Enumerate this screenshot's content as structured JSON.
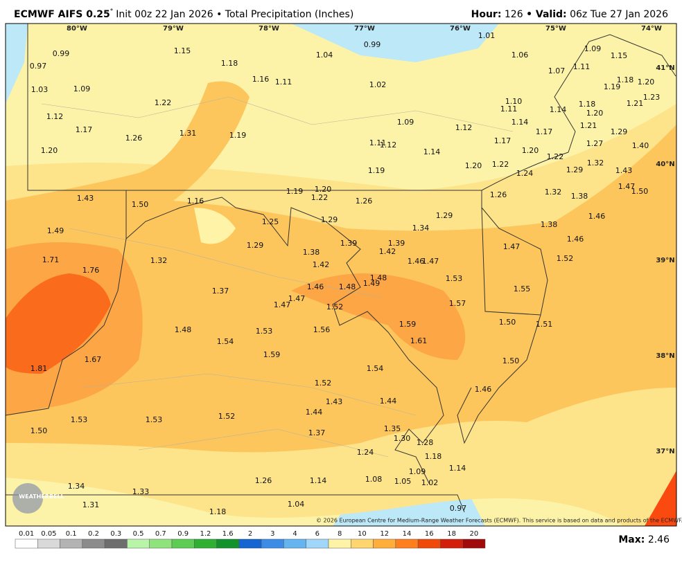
{
  "header": {
    "model": "ECMWF AIFS 0.25",
    "degree": "°",
    "description": "Init 00z 22 Jan 2026 • Total Precipitation (Inches)",
    "hour_label": "Hour:",
    "hour": "126",
    "valid_label": "• Valid:",
    "valid": "06z Tue 27 Jan 2026"
  },
  "map": {
    "longitudes": [
      "80°W",
      "79°W",
      "78°W",
      "77°W",
      "76°W",
      "75°W",
      "74°W"
    ],
    "latitudes": [
      "41°N",
      "40°N",
      "39°N",
      "38°N",
      "37°N"
    ],
    "station_values": [
      "0.99",
      "0.97",
      "1.03",
      "1.09",
      "1.12",
      "1.17",
      "1.20",
      "1.15",
      "1.18",
      "1.16",
      "1.11",
      "1.04",
      "0.99",
      "1.02",
      "1.01",
      "1.06",
      "1.07",
      "1.09",
      "1.15",
      "1.11",
      "1.18",
      "1.19",
      "1.20",
      "1.21",
      "1.23",
      "1.22",
      "1.26",
      "1.31",
      "1.19",
      "1.09",
      "1.11",
      "1.12",
      "1.14",
      "1.12",
      "1.17",
      "1.10",
      "1.11",
      "1.14",
      "1.14",
      "1.18",
      "1.20",
      "1.21",
      "1.17",
      "1.20",
      "1.22",
      "1.27",
      "1.29",
      "1.40",
      "1.19",
      "1.20",
      "1.22",
      "1.24",
      "1.29",
      "1.32",
      "1.43",
      "1.47",
      "1.50",
      "1.43",
      "1.50",
      "1.16",
      "1.19",
      "1.20",
      "1.22",
      "1.26",
      "1.25",
      "1.29",
      "1.29",
      "1.34",
      "1.26",
      "1.32",
      "1.38",
      "1.38",
      "1.46",
      "1.46",
      "1.47",
      "1.52",
      "1.49",
      "1.71",
      "1.76",
      "1.32",
      "1.29",
      "1.38",
      "1.39",
      "1.39",
      "1.42",
      "1.42",
      "1.46",
      "1.48",
      "1.49",
      "1.48",
      "1.46",
      "1.47",
      "1.53",
      "1.55",
      "1.37",
      "1.47",
      "1.47",
      "1.52",
      "1.57",
      "1.59",
      "1.50",
      "1.51",
      "1.48",
      "1.54",
      "1.53",
      "1.56",
      "1.61",
      "1.81",
      "1.67",
      "1.59",
      "1.54",
      "1.50",
      "1.52",
      "1.43",
      "1.44",
      "1.46",
      "1.53",
      "1.53",
      "1.52",
      "1.44",
      "1.50",
      "1.37",
      "1.35",
      "1.30",
      "1.28",
      "1.24",
      "1.18",
      "1.09",
      "1.14",
      "1.34",
      "1.33",
      "1.26",
      "1.14",
      "1.08",
      "1.05",
      "1.02",
      "1.31",
      "1.04",
      "0.97",
      "1.18"
    ],
    "logo": "WEATHERBELL",
    "copyright": "© 2026 European Centre for Medium-Range Weather Forecasts (ECMWF). This service is based on data and products of the ECMWF."
  },
  "colorbar": {
    "labels": [
      "0.01",
      "0.05",
      "0.1",
      "0.2",
      "0.3",
      "0.5",
      "0.7",
      "0.9",
      "1.2",
      "1.6",
      "2",
      "3",
      "4",
      "6",
      "8",
      "10",
      "12",
      "14",
      "16",
      "18",
      "20"
    ],
    "colors": [
      "#ffffff",
      "#d9d9d9",
      "#b3b3b3",
      "#8c8c8c",
      "#6e6e6e",
      "#b9f5a8",
      "#8fe27c",
      "#5ccc52",
      "#2fb032",
      "#12922a",
      "#1464d2",
      "#3c8ce6",
      "#64b4f0",
      "#a0d6fa",
      "#fff3a8",
      "#ffd56e",
      "#ffae3c",
      "#ff7f1e",
      "#f04a0a",
      "#d21e0a",
      "#a00a0a"
    ]
  },
  "max": {
    "label": "Max:",
    "value": "2.46"
  }
}
